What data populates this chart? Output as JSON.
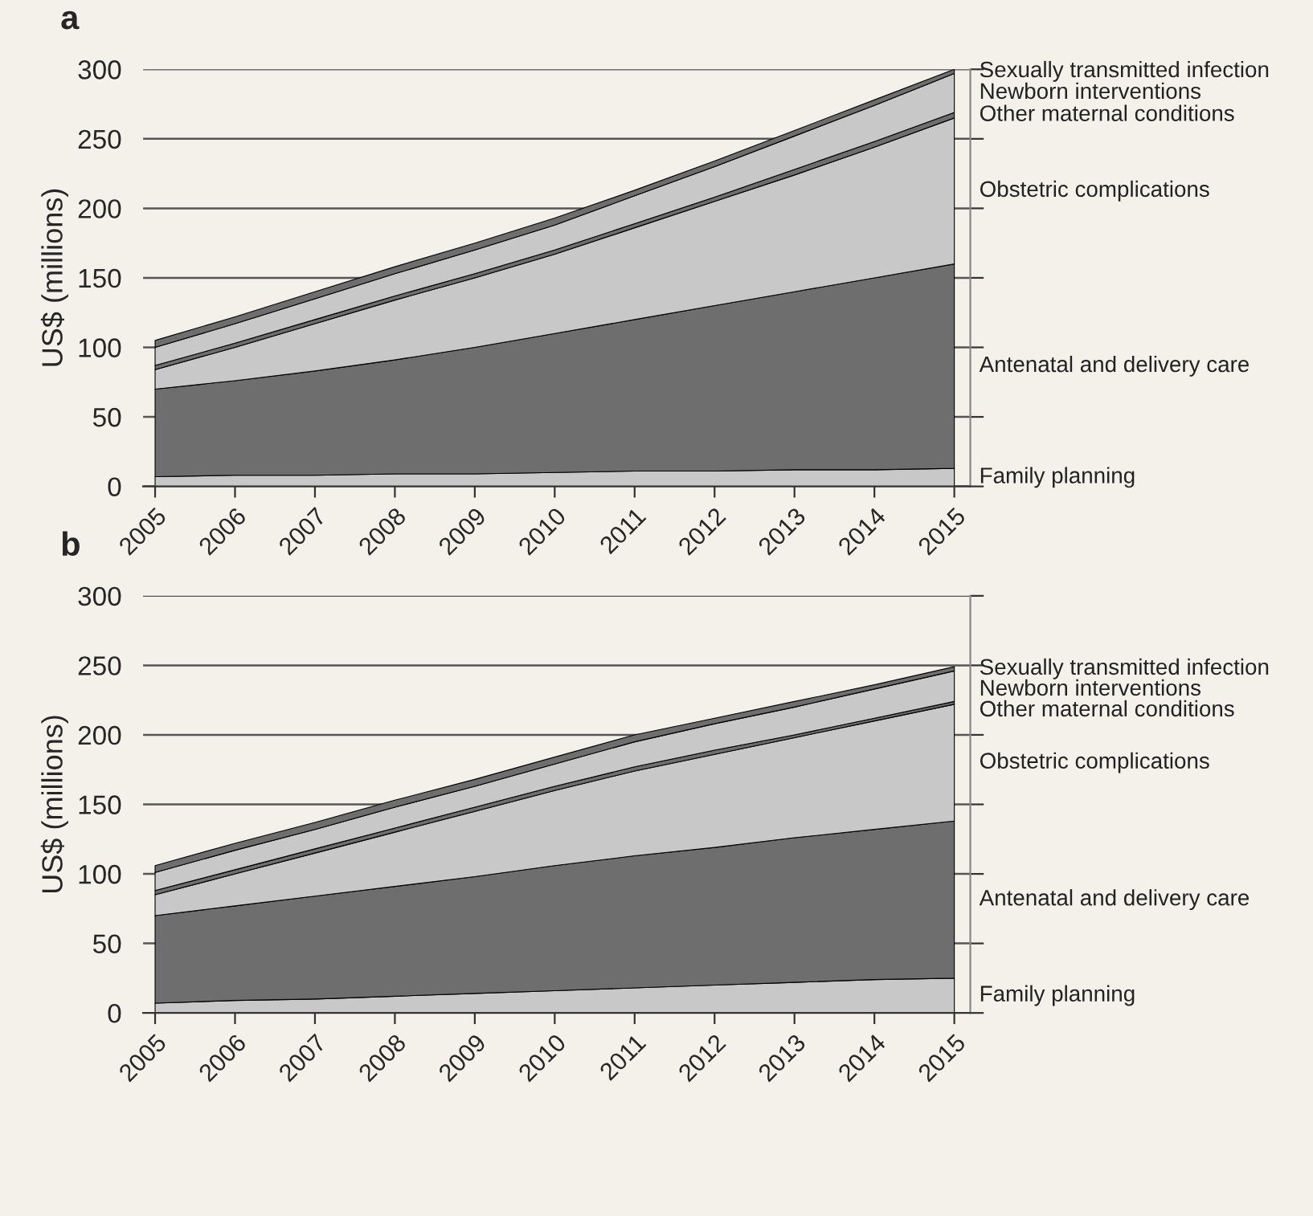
{
  "chart_data": [
    {
      "type": "area",
      "title": "a",
      "ylabel": "US$ (millions)",
      "stacked": true,
      "x": [
        2005,
        2006,
        2007,
        2008,
        2009,
        2010,
        2011,
        2012,
        2013,
        2014,
        2015
      ],
      "xlim": [
        2004.85,
        2015.2
      ],
      "xticks": [
        2005,
        2006,
        2007,
        2008,
        2009,
        2010,
        2011,
        2012,
        2013,
        2014,
        2015
      ],
      "ylim": [
        0,
        300
      ],
      "yticks": [
        0,
        50,
        100,
        150,
        200,
        250,
        300
      ],
      "grid": "y",
      "series": [
        {
          "name": "Family planning",
          "color": "#c8c8c8",
          "values": [
            7,
            8,
            8,
            9,
            9,
            10,
            11,
            11,
            12,
            12,
            13
          ]
        },
        {
          "name": "Antenatal and delivery care",
          "color": "#6e6e6e",
          "values": [
            63,
            68,
            75,
            82,
            91,
            100,
            109,
            119,
            128,
            138,
            147
          ]
        },
        {
          "name": "Obstetric complications",
          "color": "#c8c8c8",
          "values": [
            14,
            24,
            34,
            43,
            50,
            57,
            66,
            75,
            84,
            94,
            105
          ]
        },
        {
          "name": "Other maternal conditions",
          "color": "#6e6e6e",
          "values": [
            3,
            3,
            3,
            3,
            3,
            3,
            3,
            3,
            4,
            4,
            4
          ]
        },
        {
          "name": "Newborn interventions",
          "color": "#c8c8c8",
          "values": [
            13,
            14,
            15,
            16,
            17,
            18,
            20,
            22,
            24,
            26,
            28
          ]
        },
        {
          "name": "Sexually transmitted infection",
          "color": "#6e6e6e",
          "values": [
            5,
            5,
            5,
            5,
            5,
            5,
            4,
            4,
            4,
            4,
            3
          ]
        }
      ]
    },
    {
      "type": "area",
      "title": "b",
      "ylabel": "US$ (millions)",
      "stacked": true,
      "x": [
        2005,
        2006,
        2007,
        2008,
        2009,
        2010,
        2011,
        2012,
        2013,
        2014,
        2015
      ],
      "xlim": [
        2004.85,
        2015.2
      ],
      "xticks": [
        2005,
        2006,
        2007,
        2008,
        2009,
        2010,
        2011,
        2012,
        2013,
        2014,
        2015
      ],
      "ylim": [
        0,
        300
      ],
      "yticks": [
        0,
        50,
        100,
        150,
        200,
        250,
        300
      ],
      "grid": "y",
      "series": [
        {
          "name": "Family planning",
          "color": "#c8c8c8",
          "values": [
            7,
            9,
            10,
            12,
            14,
            16,
            18,
            20,
            22,
            24,
            25
          ]
        },
        {
          "name": "Antenatal and delivery care",
          "color": "#6e6e6e",
          "values": [
            63,
            68,
            74,
            79,
            84,
            90,
            95,
            99,
            104,
            108,
            113
          ]
        },
        {
          "name": "Obstetric complications",
          "color": "#c8c8c8",
          "values": [
            15,
            23,
            31,
            39,
            47,
            54,
            61,
            67,
            72,
            78,
            84
          ]
        },
        {
          "name": "Other maternal conditions",
          "color": "#6e6e6e",
          "values": [
            3,
            3,
            3,
            3,
            3,
            3,
            3,
            3,
            2,
            2,
            2
          ]
        },
        {
          "name": "Newborn interventions",
          "color": "#c8c8c8",
          "values": [
            13,
            14,
            14,
            15,
            15,
            16,
            18,
            19,
            20,
            21,
            22
          ]
        },
        {
          "name": "Sexually transmitted infection",
          "color": "#6e6e6e",
          "values": [
            5,
            5,
            5,
            5,
            5,
            5,
            5,
            4,
            4,
            3,
            3
          ]
        }
      ]
    }
  ]
}
